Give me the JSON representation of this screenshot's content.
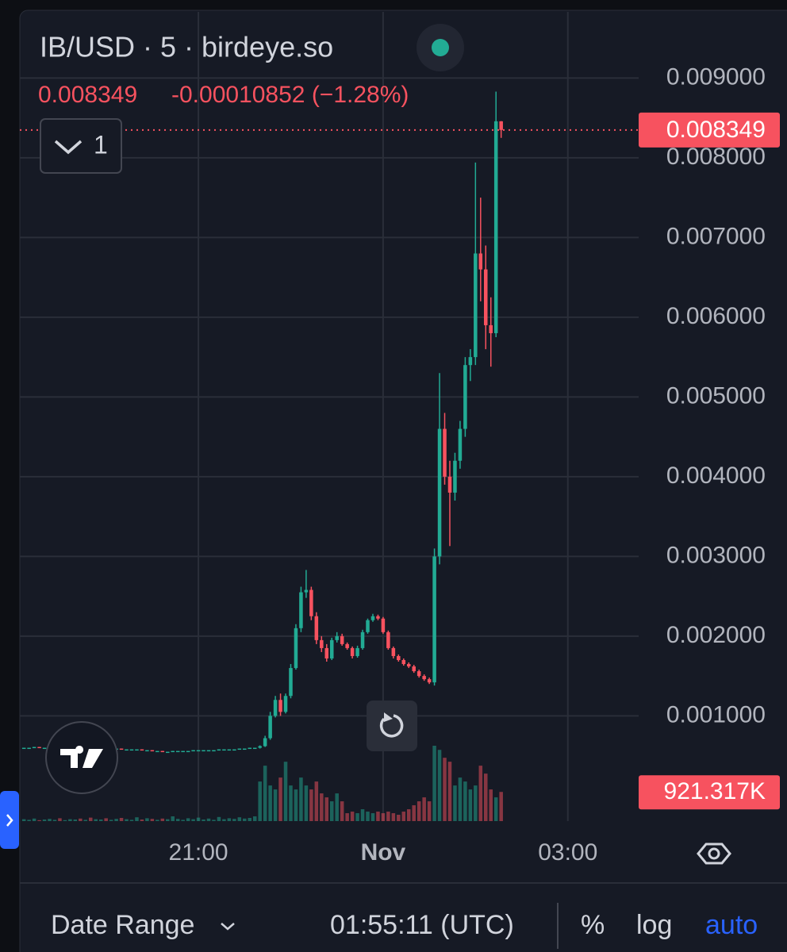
{
  "header": {
    "symbol": "IB/USD · 5 · birdeye.so",
    "change": "-0.00010852 (−1.28%)",
    "indicators_count": "1"
  },
  "chart_data": {
    "type": "candlestick",
    "x": [
      -350,
      -345,
      -340,
      -335,
      -330,
      -325,
      -320,
      -315,
      -310,
      -305,
      -300,
      -295,
      -290,
      -285,
      -280,
      -275,
      -270,
      -265,
      -260,
      -255,
      -250,
      -245,
      -240,
      -235,
      -230,
      -225,
      -220,
      -215,
      -210,
      -205,
      -200,
      -195,
      -190,
      -185,
      -180,
      -175,
      -170,
      -165,
      -160,
      -155,
      -150,
      -145,
      -140,
      -135,
      -130,
      -125,
      -120,
      -115,
      -110,
      -105,
      -100,
      -95,
      -90,
      -85,
      -80,
      -75,
      -70,
      -65,
      -60,
      -55,
      -50,
      -45,
      -40,
      -35,
      -30,
      -25,
      -20,
      -15,
      -10,
      -5,
      0,
      5,
      10,
      15,
      20,
      25,
      30,
      35,
      40,
      45,
      50,
      55,
      60,
      65,
      70,
      75,
      80,
      85,
      90,
      95,
      100,
      105,
      110,
      115
    ],
    "xlim": [
      -354,
      249
    ],
    "xticks": [
      {
        "value": -180,
        "label": "21:00"
      },
      {
        "value": 0,
        "label": "Nov"
      },
      {
        "value": 180,
        "label": "03:00"
      }
    ],
    "ylim": [
      -0.00032,
      0.00983
    ],
    "yticks": [
      {
        "value": 0.001,
        "label": "0.001000"
      },
      {
        "value": 0.002,
        "label": "0.002000"
      },
      {
        "value": 0.003,
        "label": "0.003000"
      },
      {
        "value": 0.004,
        "label": "0.004000"
      },
      {
        "value": 0.005,
        "label": "0.005000"
      },
      {
        "value": 0.006,
        "label": "0.006000"
      },
      {
        "value": 0.007,
        "label": "0.007000"
      },
      {
        "value": 0.008,
        "label": "0.008000"
      },
      {
        "value": 0.009,
        "label": "0.009000"
      }
    ],
    "ohlc": [
      [
        0.0006,
        0.0006,
        0.0006,
        0.0006
      ],
      [
        0.0006,
        0.0006,
        0.0006,
        0.0006
      ],
      [
        0.0006,
        0.00061,
        0.0006,
        0.00061
      ],
      [
        0.00061,
        0.00061,
        0.0006,
        0.0006
      ],
      [
        0.0006,
        0.0006,
        0.0006,
        0.0006
      ],
      [
        0.0006,
        0.0006,
        0.0006,
        0.0006
      ],
      [
        0.0006,
        0.00061,
        0.0006,
        0.00061
      ],
      [
        0.00061,
        0.00061,
        0.0006,
        0.0006
      ],
      [
        0.0006,
        0.0006,
        0.0006,
        0.0006
      ],
      [
        0.0006,
        0.0006,
        0.0006,
        0.0006
      ],
      [
        0.0006,
        0.0006,
        0.0006,
        0.0006
      ],
      [
        0.0006,
        0.0006,
        0.00059,
        0.00059
      ],
      [
        0.00059,
        0.0006,
        0.00059,
        0.0006
      ],
      [
        0.0006,
        0.0006,
        0.00059,
        0.00059
      ],
      [
        0.00059,
        0.00059,
        0.00059,
        0.00059
      ],
      [
        0.00059,
        0.0006,
        0.00059,
        0.0006
      ],
      [
        0.0006,
        0.0006,
        0.00059,
        0.00059
      ],
      [
        0.00059,
        0.00059,
        0.00059,
        0.00059
      ],
      [
        0.00059,
        0.00059,
        0.00059,
        0.00059
      ],
      [
        0.00059,
        0.00059,
        0.00058,
        0.00058
      ],
      [
        0.00058,
        0.00058,
        0.00058,
        0.00058
      ],
      [
        0.00058,
        0.00058,
        0.00058,
        0.00058
      ],
      [
        0.00058,
        0.00058,
        0.00058,
        0.00058
      ],
      [
        0.00058,
        0.00058,
        0.00057,
        0.00057
      ],
      [
        0.00057,
        0.00057,
        0.00057,
        0.00057
      ],
      [
        0.00057,
        0.00057,
        0.00056,
        0.00056
      ],
      [
        0.00056,
        0.00056,
        0.00056,
        0.00056
      ],
      [
        0.00056,
        0.00056,
        0.00055,
        0.00055
      ],
      [
        0.00055,
        0.00055,
        0.00055,
        0.00055
      ],
      [
        0.00055,
        0.00056,
        0.00055,
        0.00056
      ],
      [
        0.00056,
        0.00056,
        0.00056,
        0.00056
      ],
      [
        0.00056,
        0.00056,
        0.00056,
        0.00056
      ],
      [
        0.00056,
        0.00056,
        0.00056,
        0.00056
      ],
      [
        0.00056,
        0.00057,
        0.00056,
        0.00057
      ],
      [
        0.00057,
        0.00057,
        0.00057,
        0.00057
      ],
      [
        0.00057,
        0.00057,
        0.00057,
        0.00057
      ],
      [
        0.00057,
        0.00057,
        0.00057,
        0.00057
      ],
      [
        0.00057,
        0.00057,
        0.00057,
        0.00057
      ],
      [
        0.00057,
        0.00058,
        0.00057,
        0.00058
      ],
      [
        0.00058,
        0.00058,
        0.00058,
        0.00058
      ],
      [
        0.00058,
        0.00058,
        0.00058,
        0.00058
      ],
      [
        0.00058,
        0.00058,
        0.00058,
        0.00058
      ],
      [
        0.00058,
        0.00059,
        0.00058,
        0.00059
      ],
      [
        0.00059,
        0.00059,
        0.00059,
        0.00059
      ],
      [
        0.00059,
        0.0006,
        0.00059,
        0.0006
      ],
      [
        0.0006,
        0.0006,
        0.0006,
        0.0006
      ],
      [
        0.0006,
        0.00063,
        0.00059,
        0.00062
      ],
      [
        0.00062,
        0.00075,
        0.00061,
        0.00072
      ],
      [
        0.00072,
        0.00105,
        0.0007,
        0.001
      ],
      [
        0.001,
        0.00125,
        0.00098,
        0.0012
      ],
      [
        0.0012,
        0.00128,
        0.001,
        0.00105
      ],
      [
        0.00105,
        0.00128,
        0.00103,
        0.00125
      ],
      [
        0.00125,
        0.00165,
        0.00122,
        0.0016
      ],
      [
        0.0016,
        0.00215,
        0.00158,
        0.0021
      ],
      [
        0.0021,
        0.00262,
        0.00205,
        0.00255
      ],
      [
        0.00255,
        0.00283,
        0.00248,
        0.00258
      ],
      [
        0.00258,
        0.00262,
        0.0022,
        0.00225
      ],
      [
        0.00225,
        0.0023,
        0.0019,
        0.00195
      ],
      [
        0.00195,
        0.002,
        0.0018,
        0.00185
      ],
      [
        0.00185,
        0.0019,
        0.00168,
        0.00172
      ],
      [
        0.00172,
        0.00198,
        0.0017,
        0.00195
      ],
      [
        0.00195,
        0.00205,
        0.00192,
        0.002
      ],
      [
        0.002,
        0.00203,
        0.00188,
        0.0019
      ],
      [
        0.0019,
        0.00192,
        0.00183,
        0.00185
      ],
      [
        0.00185,
        0.00187,
        0.00172,
        0.00175
      ],
      [
        0.00175,
        0.00188,
        0.00173,
        0.00185
      ],
      [
        0.00185,
        0.00208,
        0.00183,
        0.00205
      ],
      [
        0.00205,
        0.00222,
        0.00203,
        0.0022
      ],
      [
        0.0022,
        0.00228,
        0.00218,
        0.00225
      ],
      [
        0.00225,
        0.00227,
        0.0022,
        0.00222
      ],
      [
        0.00222,
        0.00224,
        0.00203,
        0.00205
      ],
      [
        0.00205,
        0.00207,
        0.00183,
        0.00185
      ],
      [
        0.00185,
        0.00187,
        0.00172,
        0.00175
      ],
      [
        0.00175,
        0.00177,
        0.00168,
        0.0017
      ],
      [
        0.0017,
        0.00172,
        0.00163,
        0.00165
      ],
      [
        0.00165,
        0.00167,
        0.0016,
        0.00162
      ],
      [
        0.00162,
        0.00164,
        0.00154,
        0.00156
      ],
      [
        0.00156,
        0.00158,
        0.00148,
        0.0015
      ],
      [
        0.0015,
        0.00152,
        0.00144,
        0.00146
      ],
      [
        0.00146,
        0.00148,
        0.0014,
        0.00142
      ],
      [
        0.00142,
        0.0031,
        0.00138,
        0.003
      ],
      [
        0.003,
        0.0053,
        0.0029,
        0.0046
      ],
      [
        0.0046,
        0.0048,
        0.0039,
        0.004
      ],
      [
        0.004,
        0.0042,
        0.00313,
        0.0038
      ],
      [
        0.0038,
        0.0043,
        0.0037,
        0.0042
      ],
      [
        0.0042,
        0.0047,
        0.0041,
        0.0046
      ],
      [
        0.0046,
        0.0055,
        0.0045,
        0.0054
      ],
      [
        0.0054,
        0.0056,
        0.0052,
        0.0055
      ],
      [
        0.0055,
        0.00794,
        0.0054,
        0.0068
      ],
      [
        0.0068,
        0.0075,
        0.0062,
        0.0066
      ],
      [
        0.0066,
        0.0069,
        0.0056,
        0.0059
      ],
      [
        0.0059,
        0.00625,
        0.00538,
        0.0058
      ],
      [
        0.0058,
        0.00883,
        0.00575,
        0.008458
      ],
      [
        0.008458,
        0.00846,
        0.00825,
        0.008349
      ]
    ],
    "volume": [
      60000,
      40000,
      80000,
      30000,
      50000,
      70000,
      40000,
      90000,
      30000,
      60000,
      50000,
      80000,
      40000,
      110000,
      60000,
      50000,
      90000,
      40000,
      70000,
      100000,
      60000,
      40000,
      120000,
      50000,
      90000,
      70000,
      40000,
      80000,
      60000,
      150000,
      70000,
      40000,
      90000,
      60000,
      110000,
      50000,
      80000,
      40000,
      130000,
      60000,
      90000,
      70000,
      120000,
      80000,
      100000,
      150000,
      1250000,
      1750000,
      1125000,
      1000000,
      1375000,
      1875000,
      1125000,
      1000000,
      1375000,
      1125000,
      1000000,
      1250000,
      875000,
      750000,
      625000,
      875000,
      625000,
      250000,
      300000,
      250000,
      375000,
      300000,
      250000,
      300000,
      250000,
      300000,
      250000,
      200000,
      300000,
      375000,
      500000,
      625000,
      750000,
      625000,
      2380000,
      2250000,
      2000000,
      1875000,
      1125000,
      1375000,
      1250000,
      1000000,
      1125000,
      1750000,
      1500000,
      1000000,
      750000,
      921317
    ],
    "last_volume_label": "921.317K",
    "up_color": "#22ab94",
    "down_color": "#f7525f",
    "grid": true
  },
  "toolbar": {
    "date_range": "Date Range",
    "clock": "01:55:11 (UTC)",
    "percent": "%",
    "log": "log",
    "auto": "auto"
  }
}
